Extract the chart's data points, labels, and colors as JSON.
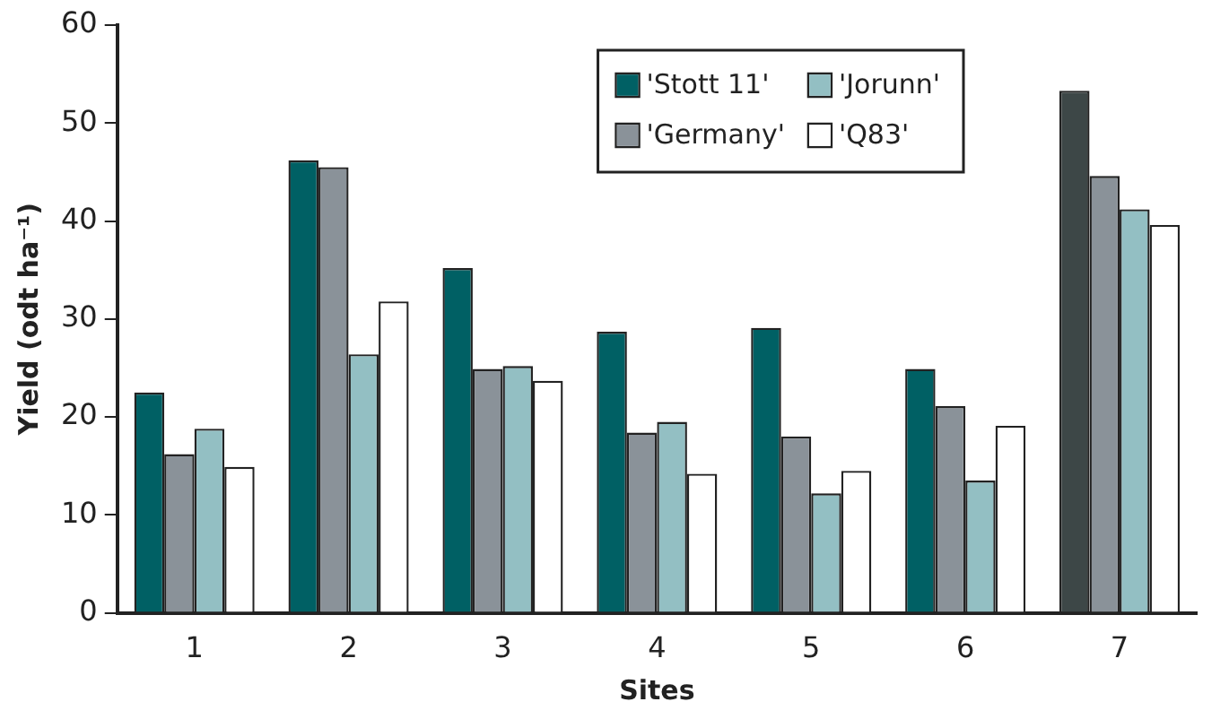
{
  "chart_data": {
    "type": "bar",
    "xlabel": "Sites",
    "ylabel": "Yield (odt ha⁻¹)",
    "categories": [
      "1",
      "2",
      "3",
      "4",
      "5",
      "6",
      "7"
    ],
    "series": [
      {
        "name": "'Stott 11'",
        "color": "#006064",
        "colors": [
          "#006064",
          "#006064",
          "#006064",
          "#006064",
          "#006064",
          "#006064",
          "#3d4747"
        ],
        "values": [
          22.5,
          46.2,
          35.2,
          28.7,
          29.1,
          24.9,
          53.3
        ]
      },
      {
        "name": "'Germany'",
        "color": "#8a9299",
        "values": [
          16.2,
          45.5,
          24.9,
          18.4,
          18.0,
          21.1,
          44.6
        ]
      },
      {
        "name": "'Jorunn'",
        "color": "#93bfc3",
        "values": [
          18.8,
          26.4,
          25.2,
          19.5,
          12.2,
          13.5,
          41.2
        ]
      },
      {
        "name": "'Q83'",
        "color": "#ffffff",
        "values": [
          14.9,
          31.8,
          23.7,
          14.2,
          14.5,
          19.1,
          39.6
        ]
      }
    ],
    "ylim": [
      0,
      60
    ],
    "yticks": [
      0,
      10,
      20,
      30,
      40,
      50,
      60
    ],
    "grid": false,
    "legend": "top right"
  }
}
